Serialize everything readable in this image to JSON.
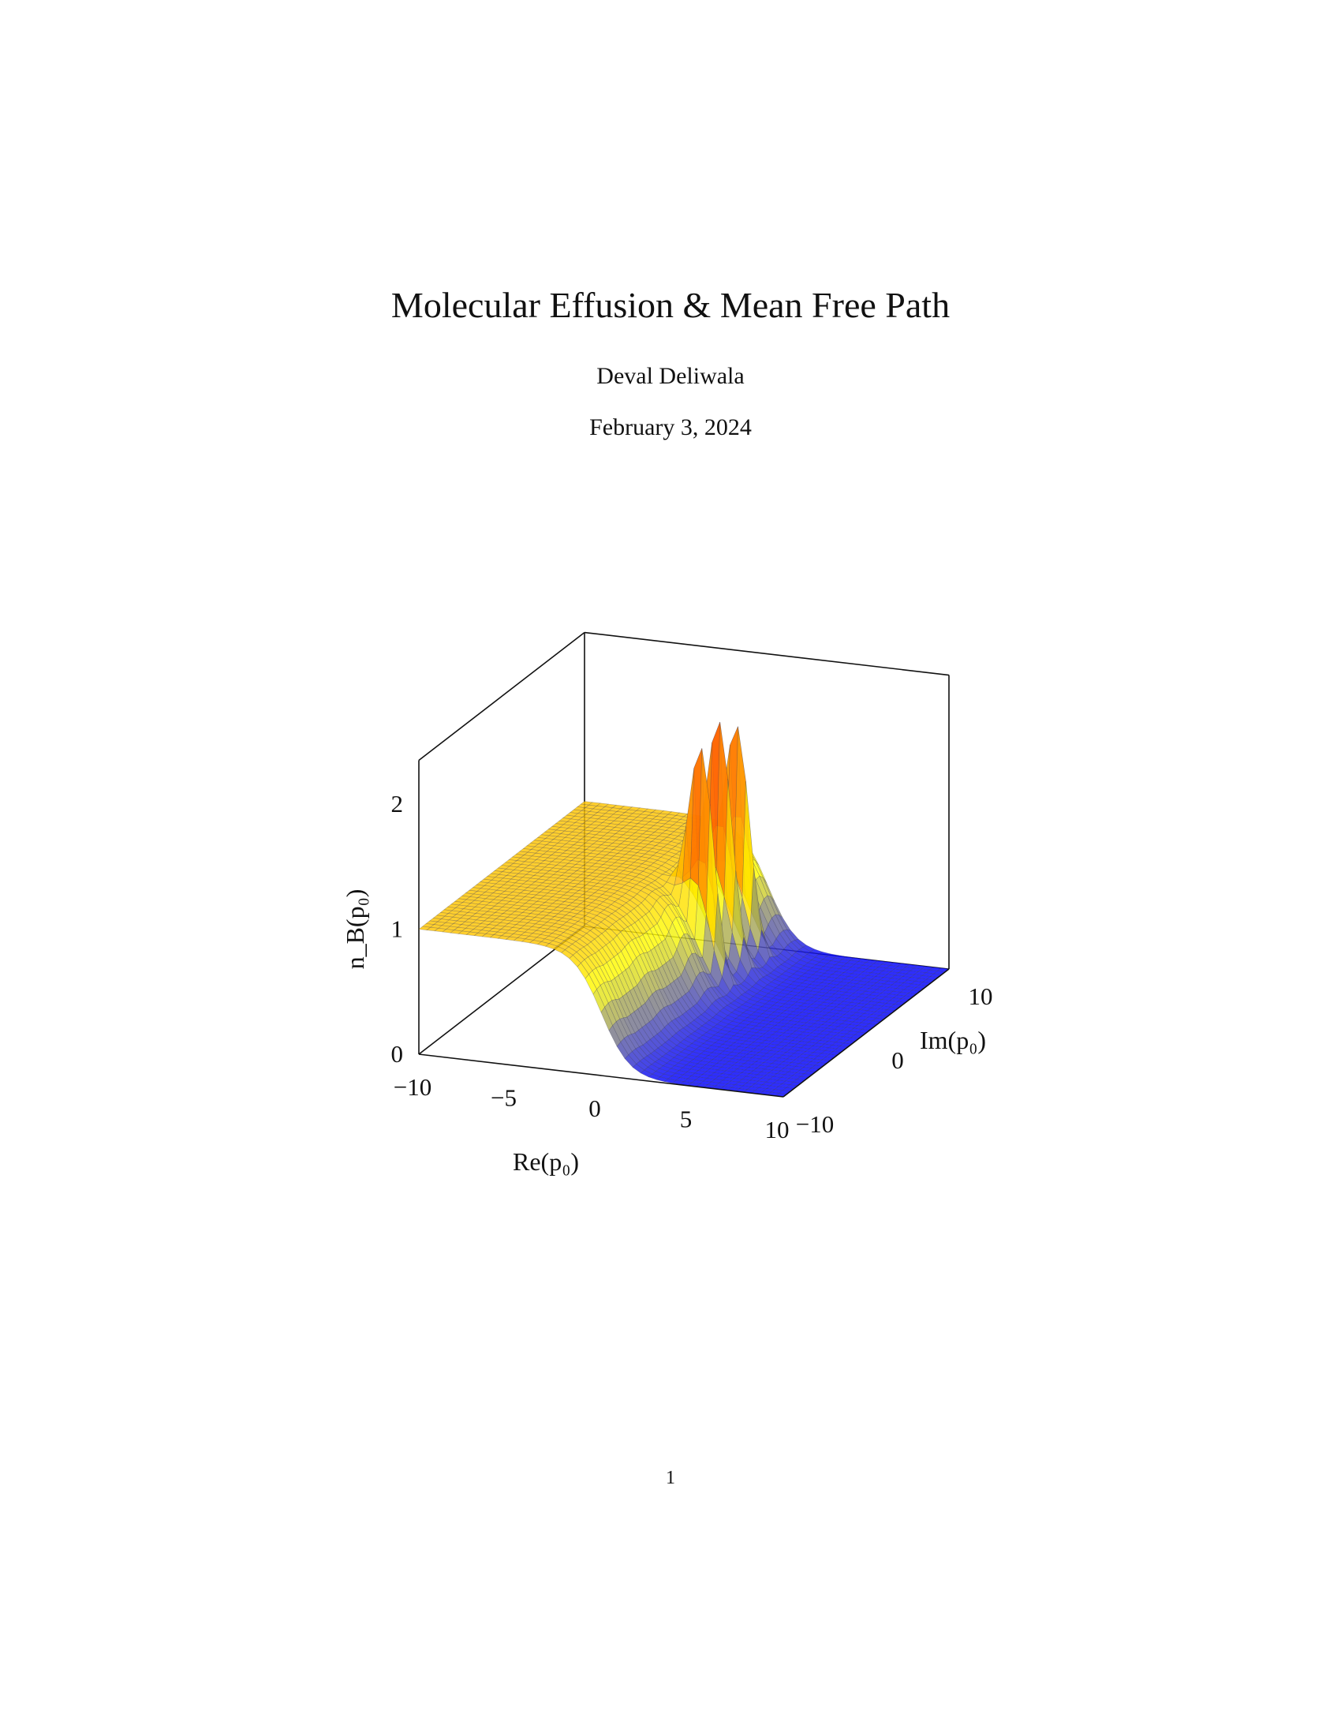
{
  "document": {
    "title": "Molecular Effusion & Mean Free Path",
    "author": "Deval Deliwala",
    "date": "February 3, 2024",
    "page_number": "1"
  },
  "chart_data": {
    "type": "surface",
    "title": "",
    "xlabel": "Re(p₀)",
    "ylabel": "Im(p₀)",
    "zlabel": "n_B(p₀)",
    "xlim": [
      -10,
      10
    ],
    "ylim": [
      -10,
      10
    ],
    "zlim": [
      0,
      2
    ],
    "x_ticks": [
      "−10",
      "−5",
      "0",
      "5",
      "10"
    ],
    "y_ticks": [
      "−10",
      "0",
      "10"
    ],
    "z_ticks": [
      "0",
      "1",
      "2"
    ],
    "surface": {
      "description_function": "n_B(p0) = 1/(exp(Re p0 + i Im p0)+1)-like; ~1 for Re<0, ~0 for Re>0, peaks at Re=0, Im≈2.2,4.4,6.6",
      "low_level": 0,
      "high_level": 1,
      "peaks": [
        {
          "re": 0,
          "im": 2.2,
          "value": 2.0
        },
        {
          "re": 0,
          "im": 4.4,
          "value": 2.0
        },
        {
          "re": 0,
          "im": 6.6,
          "value": 2.0
        }
      ]
    },
    "colormap": [
      "#0000ff",
      "#ffff00",
      "#ff8800",
      "#ff0000"
    ],
    "grid": false
  }
}
